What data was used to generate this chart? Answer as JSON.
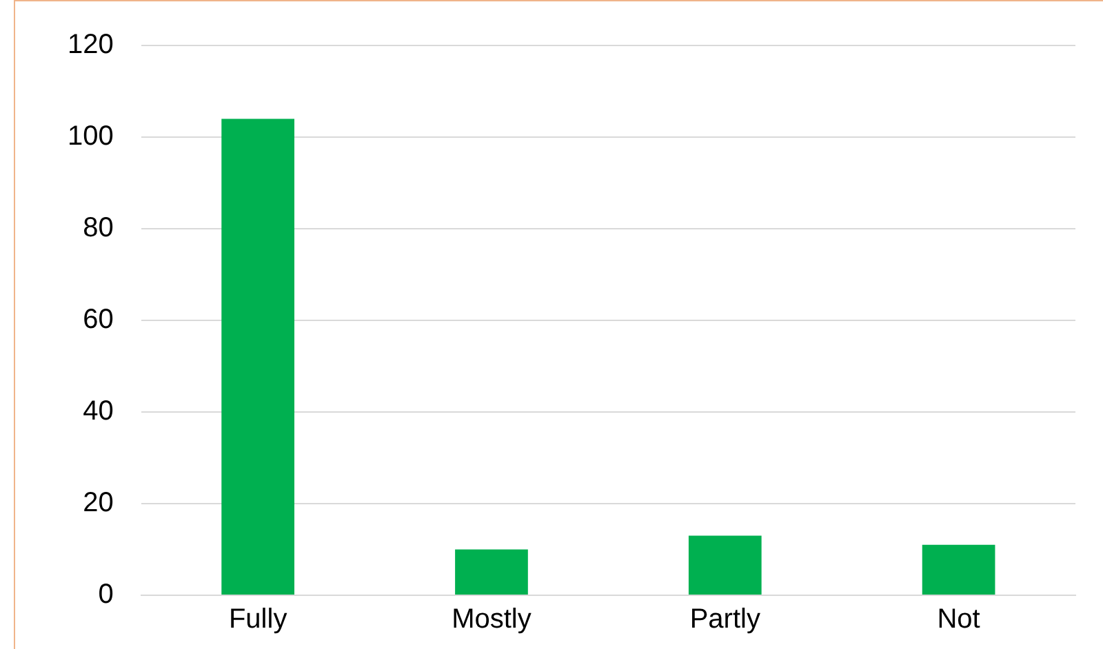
{
  "chart_data": {
    "type": "bar",
    "categories": [
      "Fully",
      "Mostly",
      "Partly",
      "Not"
    ],
    "values": [
      104,
      10,
      13,
      11
    ],
    "color": "#00b050",
    "ylim": [
      0,
      120
    ],
    "yticks": [
      0,
      20,
      40,
      60,
      80,
      100,
      120
    ],
    "grid": "y"
  }
}
